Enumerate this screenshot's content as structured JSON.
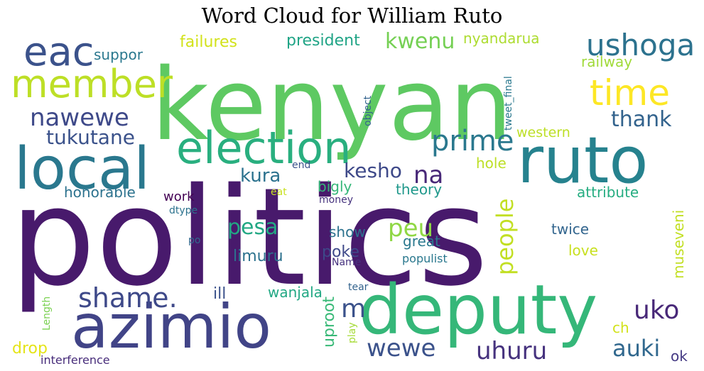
{
  "title": "Word Cloud for William Ruto",
  "words": [
    {
      "text": "politics",
      "color": "#481a6c"
    },
    {
      "text": "kenyan",
      "color": "#5ec962"
    },
    {
      "text": "ruto",
      "color": "#26828e"
    },
    {
      "text": "deputy",
      "color": "#35b779"
    },
    {
      "text": "azimio",
      "color": "#414487"
    },
    {
      "text": "local",
      "color": "#2a788e"
    },
    {
      "text": "election",
      "color": "#29af7f"
    },
    {
      "text": "member",
      "color": "#bddf26"
    },
    {
      "text": "eac",
      "color": "#3b528b"
    },
    {
      "text": "ushoga",
      "color": "#2c728e"
    },
    {
      "text": "time",
      "color": "#fde725"
    },
    {
      "text": "nawewe",
      "color": "#3e4989"
    },
    {
      "text": "tukutane",
      "color": "#3b528b"
    },
    {
      "text": "prime",
      "color": "#2a788e"
    },
    {
      "text": "thank",
      "color": "#33638d"
    },
    {
      "text": "kwenu",
      "color": "#75d054"
    },
    {
      "text": "president",
      "color": "#20a486"
    },
    {
      "text": "nyandarua",
      "color": "#addc30"
    },
    {
      "text": "failures",
      "color": "#d2e21b"
    },
    {
      "text": "suppor",
      "color": "#2a788e"
    },
    {
      "text": "railway",
      "color": "#a0da39"
    },
    {
      "text": "western",
      "color": "#bddf26"
    },
    {
      "text": "kesho",
      "color": "#3e4989"
    },
    {
      "text": "na",
      "color": "#482878"
    },
    {
      "text": "kura",
      "color": "#2c728e"
    },
    {
      "text": "hole",
      "color": "#bddf26"
    },
    {
      "text": "bigly",
      "color": "#35b779"
    },
    {
      "text": "theory",
      "color": "#1f988b"
    },
    {
      "text": "attribute",
      "color": "#26ad81"
    },
    {
      "text": "honorable",
      "color": "#2c728e"
    },
    {
      "text": "work",
      "color": "#440154"
    },
    {
      "text": "pesa",
      "color": "#22a884"
    },
    {
      "text": "peu",
      "color": "#8fd744"
    },
    {
      "text": "people",
      "color": "#c2df23"
    },
    {
      "text": "museveni",
      "color": "#c2df23"
    },
    {
      "text": "twice",
      "color": "#32658e"
    },
    {
      "text": "great",
      "color": "#2a788e"
    },
    {
      "text": "show",
      "color": "#2c728e"
    },
    {
      "text": "poke",
      "color": "#3e4989"
    },
    {
      "text": "limuru",
      "color": "#2c728e"
    },
    {
      "text": "love",
      "color": "#c8e020"
    },
    {
      "text": "populist",
      "color": "#2a788e"
    },
    {
      "text": "shame.",
      "color": "#3e4989"
    },
    {
      "text": "ill",
      "color": "#3b528b"
    },
    {
      "text": "wanjala",
      "color": "#22a884"
    },
    {
      "text": "uproot",
      "color": "#38b977"
    },
    {
      "text": "m",
      "color": "#3b528b"
    },
    {
      "text": "wewe",
      "color": "#3b528b"
    },
    {
      "text": "uhuru",
      "color": "#46327e"
    },
    {
      "text": "uko",
      "color": "#482878"
    },
    {
      "text": "auki",
      "color": "#31688e"
    },
    {
      "text": "ok",
      "color": "#443983"
    },
    {
      "text": "ch",
      "color": "#d2e21b"
    },
    {
      "text": "drop",
      "color": "#e5e419"
    },
    {
      "text": "interference",
      "color": "#472c7a"
    },
    {
      "text": "Length",
      "color": "#7ad151"
    },
    {
      "text": "tear",
      "color": "#33638d"
    },
    {
      "text": "play",
      "color": "#a5db36"
    },
    {
      "text": "po",
      "color": "#31688e"
    },
    {
      "text": "dtype",
      "color": "#2c728e"
    },
    {
      "text": "eat",
      "color": "#c8e020"
    },
    {
      "text": "money",
      "color": "#46337e"
    },
    {
      "text": "end",
      "color": "#3b528b"
    },
    {
      "text": "Name",
      "color": "#46327e"
    },
    {
      "text": "object",
      "color": "#33638d"
    },
    {
      "text": "tweet_final",
      "color": "#2a788e"
    }
  ]
}
